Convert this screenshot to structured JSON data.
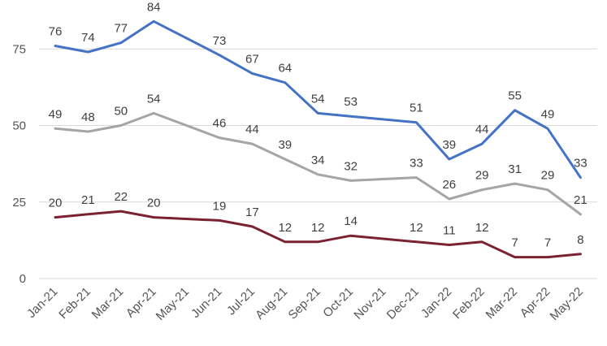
{
  "chart_data": {
    "type": "line",
    "title": "",
    "xlabel": "",
    "ylabel": "",
    "categories": [
      "Jan-21",
      "Feb-21",
      "Mar-21",
      "Apr-21",
      "May-21",
      "Jun-21",
      "Jul-21",
      "Aug-21",
      "Sep-21",
      "Oct-21",
      "Nov-21",
      "Dec-21",
      "Jan-22",
      "Feb-22",
      "Mar-22",
      "Apr-22",
      "May-22"
    ],
    "ylim": [
      0,
      90
    ],
    "yticks": [
      0,
      25,
      50,
      75
    ],
    "grid": true,
    "legend": "none",
    "series": [
      {
        "color": "#4472c4",
        "values": [
          76,
          74,
          77,
          84,
          null,
          73,
          67,
          64,
          54,
          53,
          null,
          51,
          39,
          44,
          55,
          49,
          33
        ],
        "labels": [
          "76",
          "74",
          "77",
          "84",
          "",
          "73",
          "67",
          "64",
          "54",
          "53",
          "",
          "51",
          "39",
          "44",
          "55",
          "49",
          "33"
        ]
      },
      {
        "color": "#a5a5a5",
        "values": [
          49,
          48,
          50,
          54,
          null,
          46,
          44,
          39,
          34,
          32,
          null,
          33,
          26,
          29,
          31,
          29,
          21
        ],
        "labels": [
          "49",
          "48",
          "50",
          "54",
          "",
          "46",
          "44",
          "39",
          "34",
          "32",
          "",
          "33",
          "26",
          "29",
          "31",
          "29",
          "21"
        ]
      },
      {
        "color": "#7b2232",
        "values": [
          20,
          21,
          22,
          20,
          null,
          19,
          17,
          12,
          12,
          14,
          null,
          12,
          11,
          12,
          7,
          7,
          8
        ],
        "labels": [
          "20",
          "21",
          "22",
          "20",
          "",
          "19",
          "17",
          "12",
          "12",
          "14",
          "",
          "12",
          "11",
          "12",
          "7",
          "7",
          "8"
        ]
      }
    ]
  }
}
